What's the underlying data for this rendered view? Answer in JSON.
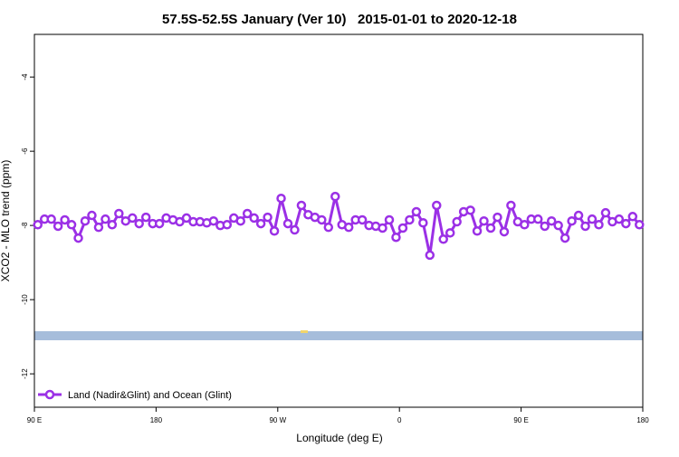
{
  "chart_data": {
    "type": "line",
    "title": "57.5S-52.5S January (Ver 10)   2015-01-01 to 2020-12-18",
    "x_label": "Longitude (deg E)",
    "y_label": "XCO2 - MLO trend (ppm)",
    "xlim": [
      90,
      540
    ],
    "xticks": [
      {
        "value": 90,
        "label": "90 E"
      },
      {
        "value": 180,
        "label": "180"
      },
      {
        "value": 270,
        "label": "90 W"
      },
      {
        "value": 360,
        "label": "0"
      },
      {
        "value": 450,
        "label": "90 E"
      },
      {
        "value": 540,
        "label": "180"
      }
    ],
    "ylim": [
      -12.9,
      -2.85
    ],
    "yticks": [
      -4,
      -6,
      -8,
      -10,
      -12
    ],
    "legend": "bottom-left",
    "x": [
      92.5,
      97.5,
      102.5,
      107.5,
      112.5,
      117.5,
      122.5,
      127.5,
      132.5,
      137.5,
      142.5,
      147.5,
      152.5,
      157.5,
      162.5,
      167.5,
      172.5,
      177.5,
      182.5,
      187.5,
      192.5,
      197.5,
      202.5,
      207.5,
      212.5,
      217.5,
      222.5,
      227.5,
      232.5,
      237.5,
      242.5,
      247.5,
      252.5,
      257.5,
      262.5,
      267.5,
      272.5,
      277.5,
      282.5,
      287.5,
      292.5,
      297.5,
      302.5,
      307.5,
      312.5,
      317.5,
      322.5,
      327.5,
      332.5,
      337.5,
      342.5,
      347.5,
      352.5,
      357.5,
      362.5,
      367.5,
      372.5,
      377.5,
      382.5,
      387.5,
      392.5,
      397.5,
      402.5,
      407.5,
      412.5,
      417.5,
      422.5,
      427.5,
      432.5,
      437.5,
      442.5,
      447.5,
      452.5,
      457.5,
      462.5,
      467.5,
      472.5,
      477.5,
      482.5,
      487.5,
      492.5,
      497.5,
      502.5,
      507.5,
      512.5,
      517.5,
      522.5,
      527.5,
      532.5,
      537.5
    ],
    "series": [
      {
        "name": "Land (Nadir&Glint) and Ocean (Glint)",
        "color": "#9b30e6",
        "values": [
          -7.98,
          -7.83,
          -7.83,
          -8.02,
          -7.85,
          -7.98,
          -8.34,
          -7.88,
          -7.73,
          -8.05,
          -7.83,
          -7.98,
          -7.68,
          -7.88,
          -7.8,
          -7.95,
          -7.78,
          -7.95,
          -7.95,
          -7.8,
          -7.85,
          -7.9,
          -7.8,
          -7.9,
          -7.9,
          -7.93,
          -7.88,
          -8.0,
          -7.98,
          -7.8,
          -7.88,
          -7.68,
          -7.8,
          -7.95,
          -7.78,
          -8.15,
          -7.27,
          -7.95,
          -8.12,
          -7.46,
          -7.71,
          -7.78,
          -7.85,
          -8.05,
          -7.22,
          -7.98,
          -8.05,
          -7.85,
          -7.85,
          -8.0,
          -8.02,
          -8.07,
          -7.85,
          -8.32,
          -8.07,
          -7.85,
          -7.63,
          -7.93,
          -8.8,
          -7.46,
          -8.37,
          -8.2,
          -7.9,
          -7.63,
          -7.59,
          -8.15,
          -7.88,
          -8.07,
          -7.78,
          -8.17,
          -7.46,
          -7.9,
          -7.98,
          -7.83,
          -7.83,
          -8.02,
          -7.88,
          -8.0,
          -8.34,
          -7.88,
          -7.73,
          -8.02,
          -7.83,
          -7.98,
          -7.66,
          -7.9,
          -7.83,
          -7.95,
          -7.76,
          -7.98
        ]
      }
    ]
  }
}
